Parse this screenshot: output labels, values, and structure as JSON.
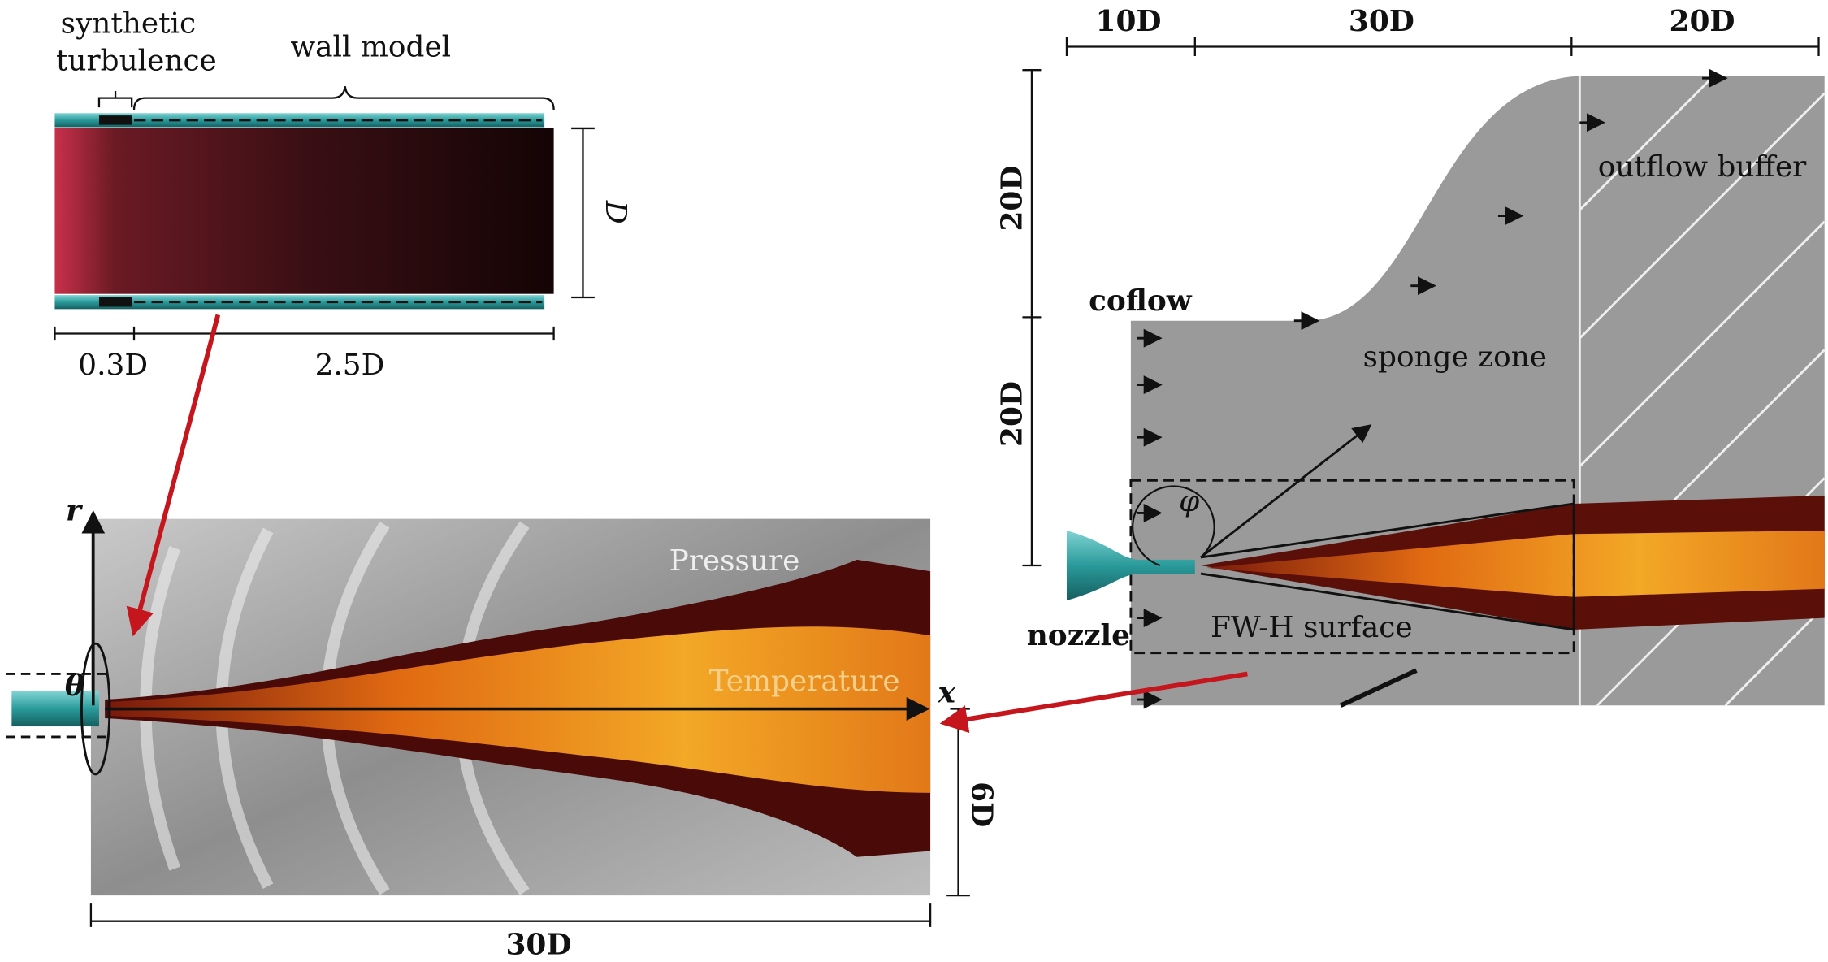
{
  "panels": {
    "inlet": {
      "label_line1": "synthetic",
      "label_line2": "turbulence",
      "wall_label": "wall model",
      "diameter": "D",
      "dim_left": "0.3D",
      "dim_right": "2.5D"
    },
    "jet": {
      "axis_r": "r",
      "axis_theta": "θ",
      "axis_x": "x",
      "pressure": "Pressure",
      "temperature": "Temperature",
      "height": "6D",
      "length": "30D"
    },
    "domain": {
      "top_dims": [
        "10D",
        "30D",
        "20D"
      ],
      "side_dims": [
        "20D",
        "20D"
      ],
      "coflow": "coflow",
      "outflow": "outflow buffer",
      "sponge": "sponge zone",
      "angle": "φ",
      "nozzle": "nozzle",
      "surface": "FW-H surface"
    }
  }
}
